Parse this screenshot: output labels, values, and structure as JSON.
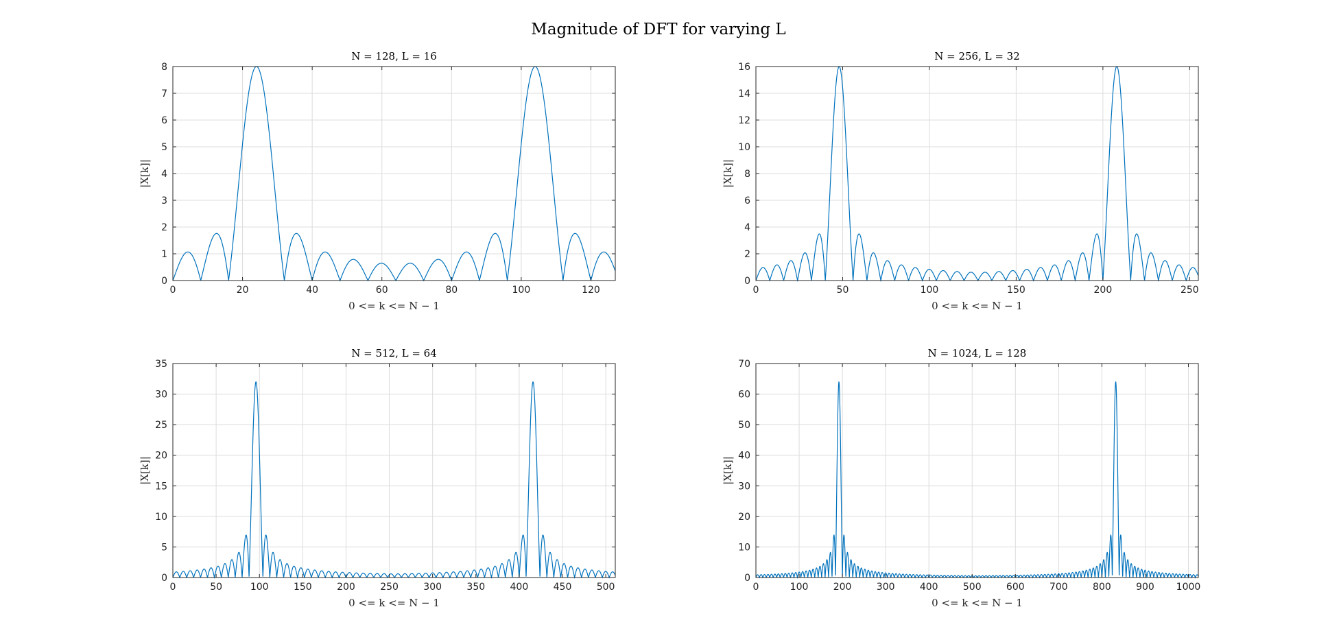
{
  "figure": {
    "title": "Magnitude of DFT for varying L"
  },
  "colors": {
    "line": "#0072BD",
    "grid": "#dcdcdc",
    "axes": "#262626"
  },
  "chart_data": [
    {
      "type": "line",
      "title": "N = 128, L = 16",
      "xlabel": "0 <= k <= N − 1",
      "ylabel": "|X[k]|",
      "N": 128,
      "L": 16,
      "xlim": [
        0,
        127
      ],
      "ylim": [
        0,
        8
      ],
      "xticks": [
        0,
        20,
        40,
        60,
        80,
        100,
        120
      ],
      "yticks": [
        0,
        1,
        2,
        3,
        4,
        5,
        6,
        7,
        8
      ],
      "peaks": [
        {
          "k": 24,
          "value": 8
        },
        {
          "k": 104,
          "value": 8
        }
      ],
      "grid": true
    },
    {
      "type": "line",
      "title": "N = 256, L = 32",
      "xlabel": "0 <= k <= N − 1",
      "ylabel": "|X[k]|",
      "N": 256,
      "L": 32,
      "xlim": [
        0,
        255
      ],
      "ylim": [
        0,
        16
      ],
      "xticks": [
        0,
        50,
        100,
        150,
        200,
        250
      ],
      "yticks": [
        0,
        2,
        4,
        6,
        8,
        10,
        12,
        14,
        16
      ],
      "peaks": [
        {
          "k": 48,
          "value": 16
        },
        {
          "k": 208,
          "value": 16
        }
      ],
      "grid": true
    },
    {
      "type": "line",
      "title": "N = 512, L = 64",
      "xlabel": "0 <= k <= N − 1",
      "ylabel": "|X[k]|",
      "N": 512,
      "L": 64,
      "xlim": [
        0,
        511
      ],
      "ylim": [
        0,
        35
      ],
      "xticks": [
        0,
        50,
        100,
        150,
        200,
        250,
        300,
        350,
        400,
        450,
        500
      ],
      "yticks": [
        0,
        5,
        10,
        15,
        20,
        25,
        30,
        35
      ],
      "peaks": [
        {
          "k": 96,
          "value": 32
        },
        {
          "k": 416,
          "value": 32
        }
      ],
      "grid": true
    },
    {
      "type": "line",
      "title": "N = 1024, L = 128",
      "xlabel": "0 <= k <= N − 1",
      "ylabel": "|X[k]|",
      "N": 1024,
      "L": 128,
      "xlim": [
        0,
        1023
      ],
      "ylim": [
        0,
        70
      ],
      "xticks": [
        0,
        100,
        200,
        300,
        400,
        500,
        600,
        700,
        800,
        900,
        1000
      ],
      "yticks": [
        0,
        10,
        20,
        30,
        40,
        50,
        60,
        70
      ],
      "peaks": [
        {
          "k": 192,
          "value": 64
        },
        {
          "k": 832,
          "value": 64
        }
      ],
      "grid": true
    }
  ]
}
